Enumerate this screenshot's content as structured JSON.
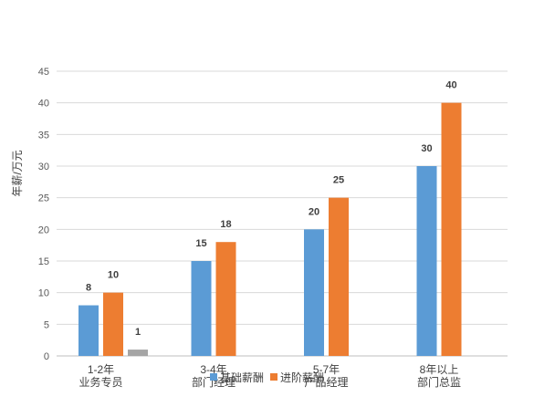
{
  "chart_data": {
    "type": "bar",
    "ylabel": "年薪/万元",
    "xlabel": "",
    "title": "",
    "ylim": [
      0,
      45
    ],
    "ytick_step": 5,
    "grid": true,
    "legend_position": "bottom",
    "categories": [
      [
        "1-2年",
        "业务专员"
      ],
      [
        "3-4年",
        "部门经理"
      ],
      [
        "5-7年",
        "产品经理"
      ],
      [
        "8年以上",
        "部门总监"
      ]
    ],
    "series": [
      {
        "name": "基础薪酬",
        "color": "#5B9BD5",
        "values": [
          8,
          15,
          20,
          30
        ]
      },
      {
        "name": "进阶薪酬",
        "color": "#ED7D31",
        "values": [
          10,
          18,
          25,
          40
        ]
      },
      {
        "color": "#A5A5A5",
        "values": [
          1,
          null,
          null,
          null
        ]
      }
    ]
  }
}
